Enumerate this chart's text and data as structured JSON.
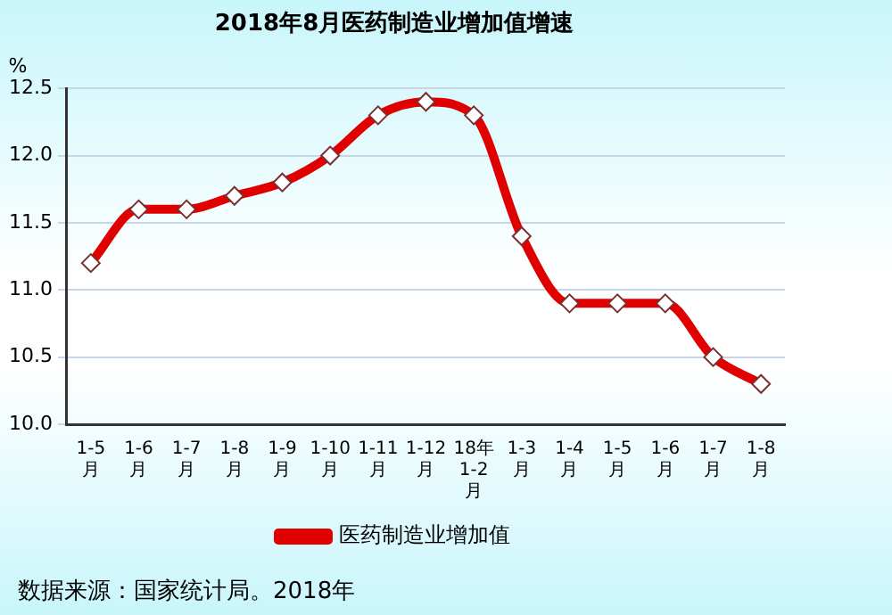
{
  "chart_data": {
    "type": "line",
    "title": "2018年8月医药制造业增加值增速",
    "ylabel": "%",
    "categories": [
      "1-5\n月",
      "1-6\n月",
      "1-7\n月",
      "1-8\n月",
      "1-9\n月",
      "1-10\n月",
      "1-11\n月",
      "1-12\n月",
      "18年\n1-2\n月",
      "1-3\n月",
      "1-4\n月",
      "1-5\n月",
      "1-6\n月",
      "1-7\n月",
      "1-8\n月"
    ],
    "series": [
      {
        "name": "医药制造业增加值",
        "color": "#e00000",
        "values": [
          11.2,
          11.6,
          11.6,
          11.7,
          11.8,
          12.0,
          12.3,
          12.4,
          12.3,
          11.4,
          10.9,
          10.9,
          10.9,
          10.5,
          10.3
        ]
      }
    ],
    "ylim": [
      10,
      12.5
    ],
    "yticks": [
      {
        "value": 10,
        "label": "10.0"
      },
      {
        "value": 10.5,
        "label": "10.5"
      },
      {
        "value": 11,
        "label": "11.0"
      },
      {
        "value": 11.5,
        "label": "11.5"
      },
      {
        "value": 12,
        "label": "12.0"
      },
      {
        "value": 12.5,
        "label": "12.5"
      }
    ],
    "grid": "y",
    "legend": "bottom",
    "marker": "diamond",
    "line_style": "solid",
    "annotations": [
      "数据来源：国家统计局。2018年"
    ]
  }
}
